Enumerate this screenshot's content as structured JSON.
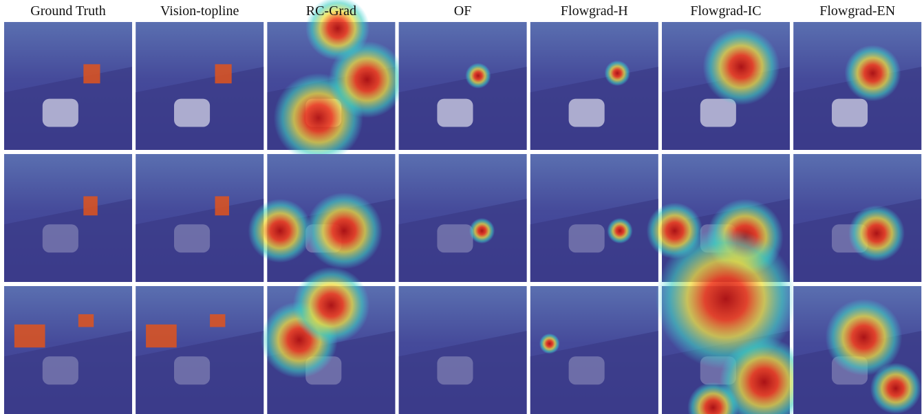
{
  "columns": [
    "Ground Truth",
    "Vision-topline",
    "RC-Grad",
    "OF",
    "Flowgrad-H",
    "Flowgrad-IC",
    "Flowgrad-EN"
  ]
}
